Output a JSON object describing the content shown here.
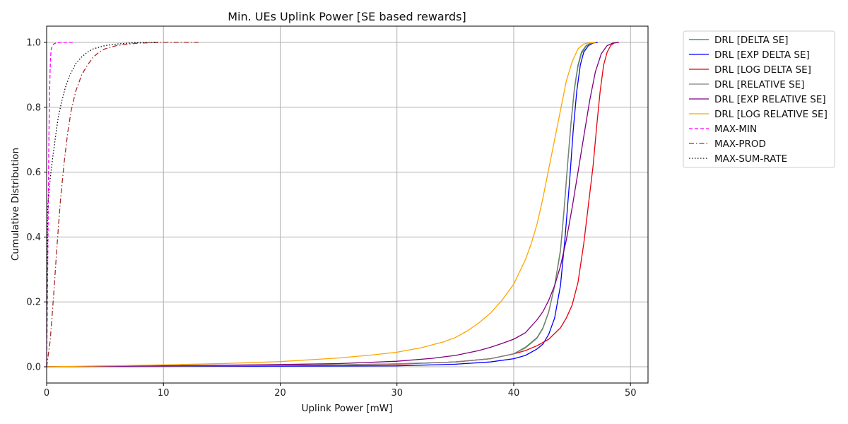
{
  "chart_data": {
    "type": "line",
    "title": "Min. UEs Uplink Power [SE based rewards]",
    "xlabel": "Uplink Power [mW]",
    "ylabel": "Cumulative Distribution",
    "xlim": [
      0,
      51.5
    ],
    "ylim": [
      -0.05,
      1.05
    ],
    "x_ticks": [
      0,
      10,
      20,
      30,
      40,
      50
    ],
    "y_ticks": [
      0.0,
      0.2,
      0.4,
      0.6,
      0.8,
      1.0
    ],
    "x_tick_labels": [
      "0",
      "10",
      "20",
      "30",
      "40",
      "50"
    ],
    "y_tick_labels": [
      "0.0",
      "0.2",
      "0.4",
      "0.6",
      "0.8",
      "1.0"
    ],
    "grid": true,
    "legend_position": "outside-right-top",
    "series": [
      {
        "name": "DRL [DELTA SE]",
        "color": "#228b22",
        "dash": "solid",
        "x": [
          0,
          10,
          20,
          25,
          30,
          35,
          38,
          40,
          41,
          42,
          42.5,
          43,
          43.5,
          44,
          44.3,
          44.6,
          44.9,
          45.2,
          45.5,
          45.8,
          46.2,
          46.6,
          47.0
        ],
        "y": [
          0,
          0.002,
          0.004,
          0.006,
          0.009,
          0.015,
          0.025,
          0.04,
          0.06,
          0.09,
          0.12,
          0.17,
          0.25,
          0.36,
          0.48,
          0.62,
          0.75,
          0.86,
          0.93,
          0.97,
          0.99,
          0.998,
          1.0
        ]
      },
      {
        "name": "DRL [EXP DELTA SE]",
        "color": "#0000ff",
        "dash": "solid",
        "x": [
          0,
          10,
          20,
          30,
          35,
          38,
          40,
          41,
          42,
          42.5,
          43,
          43.5,
          44,
          44.4,
          44.8,
          45.1,
          45.4,
          45.7,
          46.0,
          46.4,
          46.8,
          47.2
        ],
        "y": [
          0,
          0.001,
          0.002,
          0.003,
          0.008,
          0.015,
          0.025,
          0.035,
          0.055,
          0.07,
          0.1,
          0.15,
          0.25,
          0.4,
          0.58,
          0.73,
          0.85,
          0.93,
          0.97,
          0.99,
          0.998,
          1.0
        ],
        "display_name": "DRL [EXP DELTA SE]"
      },
      {
        "name": "DRL [LOG DELTA SE]",
        "color": "#e8000b",
        "dash": "solid",
        "x": [
          0,
          10,
          20,
          30,
          35,
          38,
          40,
          41,
          42,
          43,
          44,
          44.5,
          45,
          45.5,
          46,
          46.4,
          46.8,
          47.1,
          47.4,
          47.7,
          48.0,
          48.3,
          48.6,
          49.0
        ],
        "y": [
          0,
          0.002,
          0.004,
          0.008,
          0.015,
          0.025,
          0.04,
          0.05,
          0.065,
          0.085,
          0.12,
          0.15,
          0.19,
          0.26,
          0.38,
          0.5,
          0.62,
          0.74,
          0.85,
          0.93,
          0.97,
          0.99,
          0.998,
          1.0
        ]
      },
      {
        "name": "DRL [RELATIVE SE]",
        "color": "#808080",
        "dash": "solid",
        "x": [
          0,
          10,
          20,
          25,
          30,
          35,
          38,
          40,
          41,
          42,
          42.5,
          43,
          43.5,
          44,
          44.3,
          44.6,
          44.9,
          45.2,
          45.5,
          45.8,
          46.2,
          46.6,
          47.0
        ],
        "y": [
          0,
          0.002,
          0.004,
          0.006,
          0.009,
          0.015,
          0.025,
          0.04,
          0.058,
          0.088,
          0.118,
          0.168,
          0.248,
          0.355,
          0.475,
          0.615,
          0.745,
          0.855,
          0.925,
          0.965,
          0.988,
          0.997,
          1.0
        ]
      },
      {
        "name": "DRL [EXP RELATIVE SE]",
        "color": "#800080",
        "dash": "solid",
        "x": [
          0,
          10,
          20,
          25,
          30,
          33,
          35,
          37,
          38,
          39,
          40,
          41,
          42,
          42.5,
          43,
          43.5,
          44,
          44.5,
          45,
          45.5,
          46,
          46.5,
          47,
          47.5,
          48.0,
          48.5,
          49.0
        ],
        "y": [
          0,
          0.003,
          0.007,
          0.01,
          0.017,
          0.026,
          0.035,
          0.05,
          0.06,
          0.072,
          0.085,
          0.105,
          0.145,
          0.17,
          0.205,
          0.25,
          0.31,
          0.39,
          0.49,
          0.6,
          0.71,
          0.82,
          0.91,
          0.965,
          0.99,
          0.998,
          1.0
        ]
      },
      {
        "name": "DRL [LOG RELATIVE SE]",
        "color": "#ffa500",
        "dash": "solid",
        "x": [
          0,
          5,
          10,
          15,
          20,
          25,
          28,
          30,
          32,
          34,
          35,
          36,
          37,
          38,
          39,
          40,
          41,
          41.5,
          42,
          42.5,
          43,
          43.5,
          44,
          44.5,
          45,
          45.5,
          46,
          46.5,
          47.0
        ],
        "y": [
          0,
          0.003,
          0.006,
          0.01,
          0.016,
          0.027,
          0.037,
          0.045,
          0.058,
          0.077,
          0.09,
          0.11,
          0.135,
          0.165,
          0.205,
          0.255,
          0.33,
          0.38,
          0.44,
          0.52,
          0.61,
          0.7,
          0.79,
          0.88,
          0.94,
          0.98,
          0.995,
          0.999,
          1.0
        ]
      },
      {
        "name": "MAX-MIN",
        "color": "#ff00ff",
        "dash": "dashed",
        "x": [
          0,
          0.05,
          0.1,
          0.15,
          0.2,
          0.25,
          0.3,
          0.35,
          0.4,
          0.5,
          0.6,
          0.8,
          1.2,
          2.3
        ],
        "y": [
          0,
          0.15,
          0.35,
          0.55,
          0.72,
          0.84,
          0.92,
          0.96,
          0.98,
          0.99,
          0.995,
          0.998,
          1.0,
          1.0
        ]
      },
      {
        "name": "MAX-PROD",
        "color": "#a52a2a",
        "dash": "dashdot",
        "x": [
          0,
          0.3,
          0.6,
          0.9,
          1.2,
          1.5,
          1.8,
          2.1,
          2.5,
          3.0,
          3.5,
          4.0,
          4.5,
          5.0,
          6.0,
          7.0,
          8.0,
          10.0,
          13.0
        ],
        "y": [
          0,
          0.08,
          0.22,
          0.38,
          0.52,
          0.63,
          0.72,
          0.79,
          0.85,
          0.9,
          0.93,
          0.955,
          0.97,
          0.98,
          0.99,
          0.995,
          0.998,
          1.0,
          1.0
        ]
      },
      {
        "name": "MAX-SUM-RATE",
        "color": "#000000",
        "dash": "dotted",
        "x": [
          0,
          0.1,
          0.3,
          0.5,
          0.8,
          1.0,
          1.3,
          1.6,
          2.0,
          2.5,
          3.0,
          3.5,
          4.0,
          5.0,
          6.0,
          7.5,
          9.5
        ],
        "y": [
          0.1,
          0.5,
          0.58,
          0.64,
          0.72,
          0.77,
          0.82,
          0.86,
          0.9,
          0.935,
          0.955,
          0.97,
          0.98,
          0.99,
          0.995,
          0.999,
          1.0
        ]
      }
    ]
  }
}
